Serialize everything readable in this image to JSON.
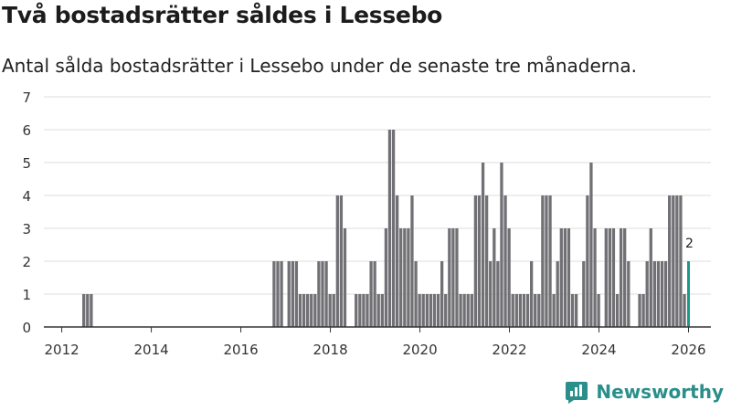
{
  "title": "Två bostadsrätter såldes i Lessebo",
  "subtitle": "Antal sålda bostadsrätter i Lessebo under de senaste tre månaderna.",
  "brand": {
    "name": "Newsworthy",
    "color": "#2a8f8a"
  },
  "colors": {
    "bar": "#707075",
    "highlight": "#1a9a8d",
    "grid": "#dddddd",
    "axis": "#333333"
  },
  "chart_data": {
    "type": "bar",
    "title": "Två bostadsrätter såldes i Lessebo",
    "xlabel": "",
    "ylabel": "",
    "ylim": [
      0,
      7
    ],
    "xlim": [
      2011.6,
      2026.5
    ],
    "yticks": [
      0,
      1,
      2,
      3,
      4,
      5,
      6,
      7
    ],
    "xticks": [
      2012,
      2014,
      2016,
      2018,
      2020,
      2022,
      2024,
      2026
    ],
    "bar_width": 0.08333,
    "highlight_label": "2",
    "series": [
      {
        "name": "Antal sålda bostadsrätter",
        "points": [
          [
            2012.5,
            1
          ],
          [
            2012.583,
            1
          ],
          [
            2012.667,
            1
          ],
          [
            2016.75,
            2
          ],
          [
            2016.833,
            2
          ],
          [
            2016.917,
            2
          ],
          [
            2017.083,
            2
          ],
          [
            2017.167,
            2
          ],
          [
            2017.25,
            2
          ],
          [
            2017.333,
            1
          ],
          [
            2017.417,
            1
          ],
          [
            2017.5,
            1
          ],
          [
            2017.583,
            1
          ],
          [
            2017.667,
            1
          ],
          [
            2017.75,
            2
          ],
          [
            2017.833,
            2
          ],
          [
            2017.917,
            2
          ],
          [
            2018.0,
            1
          ],
          [
            2018.083,
            1
          ],
          [
            2018.167,
            4
          ],
          [
            2018.25,
            4
          ],
          [
            2018.333,
            3
          ],
          [
            2018.583,
            1
          ],
          [
            2018.667,
            1
          ],
          [
            2018.75,
            1
          ],
          [
            2018.833,
            1
          ],
          [
            2018.917,
            2
          ],
          [
            2019.0,
            2
          ],
          [
            2019.083,
            1
          ],
          [
            2019.167,
            1
          ],
          [
            2019.25,
            3
          ],
          [
            2019.333,
            6
          ],
          [
            2019.417,
            6
          ],
          [
            2019.5,
            4
          ],
          [
            2019.583,
            3
          ],
          [
            2019.667,
            3
          ],
          [
            2019.75,
            3
          ],
          [
            2019.833,
            4
          ],
          [
            2019.917,
            2
          ],
          [
            2020.0,
            1
          ],
          [
            2020.083,
            1
          ],
          [
            2020.167,
            1
          ],
          [
            2020.25,
            1
          ],
          [
            2020.333,
            1
          ],
          [
            2020.417,
            1
          ],
          [
            2020.5,
            2
          ],
          [
            2020.583,
            1
          ],
          [
            2020.667,
            3
          ],
          [
            2020.75,
            3
          ],
          [
            2020.833,
            3
          ],
          [
            2020.917,
            1
          ],
          [
            2021.0,
            1
          ],
          [
            2021.083,
            1
          ],
          [
            2021.167,
            1
          ],
          [
            2021.25,
            4
          ],
          [
            2021.333,
            4
          ],
          [
            2021.417,
            5
          ],
          [
            2021.5,
            4
          ],
          [
            2021.583,
            2
          ],
          [
            2021.667,
            3
          ],
          [
            2021.75,
            2
          ],
          [
            2021.833,
            5
          ],
          [
            2021.917,
            4
          ],
          [
            2022.0,
            3
          ],
          [
            2022.083,
            1
          ],
          [
            2022.167,
            1
          ],
          [
            2022.25,
            1
          ],
          [
            2022.333,
            1
          ],
          [
            2022.417,
            1
          ],
          [
            2022.5,
            2
          ],
          [
            2022.583,
            1
          ],
          [
            2022.667,
            1
          ],
          [
            2022.75,
            4
          ],
          [
            2022.833,
            4
          ],
          [
            2022.917,
            4
          ],
          [
            2023.0,
            1
          ],
          [
            2023.083,
            2
          ],
          [
            2023.167,
            3
          ],
          [
            2023.25,
            3
          ],
          [
            2023.333,
            3
          ],
          [
            2023.417,
            1
          ],
          [
            2023.5,
            1
          ],
          [
            2023.667,
            2
          ],
          [
            2023.75,
            4
          ],
          [
            2023.833,
            5
          ],
          [
            2023.917,
            3
          ],
          [
            2024.0,
            1
          ],
          [
            2024.167,
            3
          ],
          [
            2024.25,
            3
          ],
          [
            2024.333,
            3
          ],
          [
            2024.417,
            1
          ],
          [
            2024.5,
            3
          ],
          [
            2024.583,
            3
          ],
          [
            2024.667,
            2
          ],
          [
            2024.917,
            1
          ],
          [
            2025.0,
            1
          ],
          [
            2025.083,
            2
          ],
          [
            2025.167,
            3
          ],
          [
            2025.25,
            2
          ],
          [
            2025.333,
            2
          ],
          [
            2025.417,
            2
          ],
          [
            2025.5,
            2
          ],
          [
            2025.583,
            4
          ],
          [
            2025.667,
            4
          ],
          [
            2025.75,
            4
          ],
          [
            2025.833,
            4
          ],
          [
            2025.917,
            1
          ]
        ]
      },
      {
        "name": "Senaste tre månaderna",
        "points": [
          [
            2026.0,
            2
          ]
        ]
      }
    ]
  }
}
